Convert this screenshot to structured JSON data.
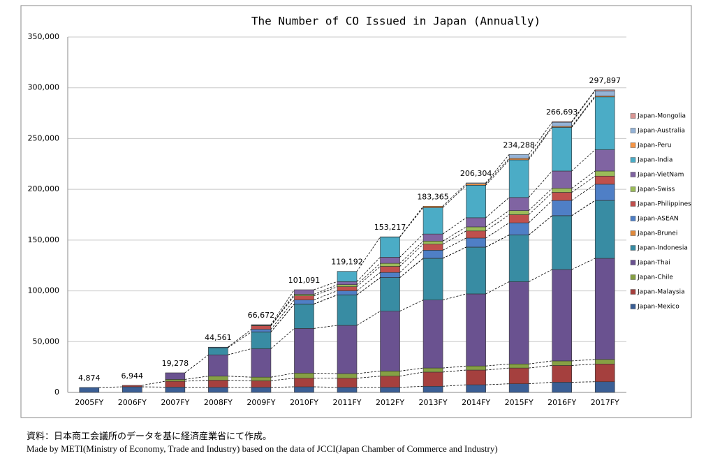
{
  "chart_data": {
    "type": "stacked_bar",
    "title": "The Number of CO Issued in Japan (Annually)",
    "categories": [
      "2005FY",
      "2006FY",
      "2007FY",
      "2008FY",
      "2009FY",
      "2010FY",
      "2011FY",
      "2012FY",
      "2013FY",
      "2014FY",
      "2015FY",
      "2016FY",
      "2017FY"
    ],
    "series": [
      {
        "name": "Japan-Mexico",
        "color": "#3b5f95",
        "values": [
          4874,
          5500,
          5200,
          5000,
          5000,
          5500,
          5000,
          5000,
          6000,
          7500,
          8500,
          10000,
          10500
        ]
      },
      {
        "name": "Japan-Malaysia",
        "color": "#a5403e",
        "values": [
          0,
          1444,
          5800,
          7000,
          6500,
          8500,
          9000,
          11000,
          14000,
          14500,
          15500,
          16500,
          17500
        ]
      },
      {
        "name": "Japan-Chile",
        "color": "#86a044",
        "values": [
          0,
          0,
          1800,
          4000,
          3500,
          5000,
          4500,
          5000,
          4000,
          4000,
          4000,
          4500,
          4500
        ]
      },
      {
        "name": "Japan-Thai",
        "color": "#6a5290",
        "values": [
          0,
          0,
          6478,
          21000,
          28000,
          44000,
          47500,
          59000,
          67000,
          71000,
          81000,
          90000,
          99500
        ]
      },
      {
        "name": "Japan-Indonesia",
        "color": "#388ca3",
        "values": [
          0,
          0,
          0,
          7000,
          16500,
          24000,
          30000,
          33000,
          41000,
          46000,
          46000,
          53000,
          57000
        ]
      },
      {
        "name": "Japan-Brunei",
        "color": "#e08a3c",
        "values": [
          0,
          0,
          0,
          0,
          100,
          100,
          100,
          100,
          100,
          100,
          100,
          100,
          100
        ]
      },
      {
        "name": "Japan-ASEAN",
        "color": "#4f7fc6",
        "values": [
          0,
          0,
          0,
          561,
          2500,
          4000,
          4000,
          5000,
          7900,
          8900,
          11900,
          14900,
          15900
        ]
      },
      {
        "name": "Japan-Philippines",
        "color": "#c0504d",
        "values": [
          0,
          0,
          0,
          0,
          3500,
          4000,
          4000,
          6000,
          6000,
          7000,
          8000,
          8000,
          8000
        ]
      },
      {
        "name": "Japan-Swiss",
        "color": "#9bbb59",
        "values": [
          0,
          0,
          0,
          0,
          500,
          1500,
          2000,
          3000,
          3000,
          4000,
          4000,
          4000,
          5000
        ]
      },
      {
        "name": "Japan-VietNam",
        "color": "#8064a2",
        "values": [
          0,
          0,
          0,
          0,
          572,
          4491,
          3000,
          6000,
          7000,
          9000,
          13000,
          17000,
          21000
        ]
      },
      {
        "name": "Japan-India",
        "color": "#4bacc6",
        "values": [
          0,
          0,
          0,
          0,
          0,
          0,
          10092,
          19900,
          26000,
          32000,
          37000,
          43000,
          52000
        ]
      },
      {
        "name": "Japan-Peru",
        "color": "#f79646",
        "values": [
          0,
          0,
          0,
          0,
          0,
          0,
          0,
          217,
          1365,
          1500,
          1500,
          1000,
          1000
        ]
      },
      {
        "name": "Japan-Australia",
        "color": "#95b3d7",
        "values": [
          0,
          0,
          0,
          0,
          0,
          0,
          0,
          0,
          0,
          804,
          3788,
          4000,
          5000
        ]
      },
      {
        "name": "Japan-Mongolia",
        "color": "#d99694",
        "values": [
          0,
          0,
          0,
          0,
          0,
          0,
          0,
          0,
          0,
          0,
          0,
          693,
          897
        ]
      }
    ],
    "totals": {
      "values": [
        4874,
        6944,
        19278,
        44561,
        66672,
        101091,
        119192,
        153217,
        183365,
        206304,
        234288,
        266693,
        297897
      ],
      "value_labels": [
        "4,874",
        "6,944",
        "19,278",
        "44,561",
        "66,672",
        "101,091",
        "119,192",
        "153,217",
        "183,365",
        "206,304",
        "234,288",
        "266,693",
        "297,897"
      ]
    },
    "ylim": [
      0,
      350000
    ],
    "yticks": [
      0,
      {
        "value": 50000,
        "label": "50,000"
      },
      {
        "value": 100000,
        "label": "100,000"
      },
      {
        "value": 150000,
        "label": "150,000"
      },
      {
        "value": 200000,
        "label": "200,000"
      },
      {
        "value": 250000,
        "label": "250,000"
      },
      {
        "value": 300000,
        "label": "300,000"
      },
      {
        "value": 350000,
        "label": "350,000"
      }
    ],
    "grid": true,
    "legend": "right",
    "note_ja": "資料：日本商工会議所のデータを基に経済産業省にて作成。",
    "note_en": "Made by METI(Ministry of Economy, Trade and Industry) based on the data of JCCI(Japan Chamber of Commerce and Industry)"
  }
}
